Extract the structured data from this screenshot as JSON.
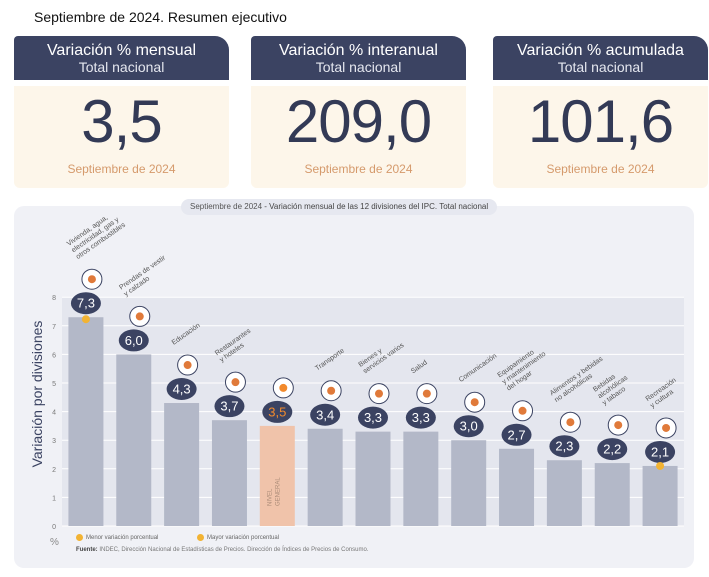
{
  "page_title": "Septiembre de 2024. Resumen ejecutivo",
  "cards": [
    {
      "title": "Variación % mensual",
      "subtitle": "Total nacional",
      "value": "3,5",
      "period": "Septiembre de 2024"
    },
    {
      "title": "Variación % interanual",
      "subtitle": "Total nacional",
      "value": "209,0",
      "period": "Septiembre de 2024"
    },
    {
      "title": "Variación % acumulada",
      "subtitle": "Total nacional",
      "value": "101,6",
      "period": "Septiembre de 2024"
    }
  ],
  "chart": {
    "title_period": "Septiembre de 2024",
    "title_rest": " - Variación mensual de las 12 divisiones del IPC. Total nacional",
    "ylabel": "Variación por divisiones",
    "unit": "%",
    "legend_min": "Menor variación porcentual",
    "legend_max": "Mayor variación porcentual",
    "source_label": "Fuente:",
    "source_text": " INDEC, Dirección Nacional de Estadísticas de Precios. Dirección de Índices de Precios de Consumo."
  },
  "chart_data": {
    "type": "bar",
    "categories": [
      "Vivienda, agua, electricidad, gas y otros combustibles",
      "Prendas de vestir y calzado",
      "Educación",
      "Restaurantes y hoteles",
      "NIVEL GENERAL",
      "Transporte",
      "Bienes y servicios varios",
      "Salud",
      "Comunicación",
      "Equipamiento y mantenimiento del hogar",
      "Alimentos y bebidas no alcohólicas",
      "Bebidas alcohólicas y tabaco",
      "Recreación y cultura"
    ],
    "category_lines": [
      [
        "Vivienda, agua,",
        "electricidad, gas y",
        "otros combustibles"
      ],
      [
        "Prendas de vestir",
        "y calzado"
      ],
      [
        "Educación"
      ],
      [
        "Restaurantes",
        "y hoteles"
      ],
      [
        "NIVEL",
        "GENERAL"
      ],
      [
        "Transporte"
      ],
      [
        "Bienes y",
        "servicios varios"
      ],
      [
        "Salud"
      ],
      [
        "Comunicación"
      ],
      [
        "Equipamiento",
        "y mantenimiento",
        "del hogar"
      ],
      [
        "Alimentos y bebidas",
        "no alcohólicas"
      ],
      [
        "Bebidas",
        "alcohólicas",
        "y tabaco"
      ],
      [
        "Recreación",
        "y cultura"
      ]
    ],
    "values": [
      7.3,
      6.0,
      4.3,
      3.7,
      3.5,
      3.4,
      3.3,
      3.3,
      3.0,
      2.7,
      2.3,
      2.2,
      2.1
    ],
    "value_labels": [
      "7,3",
      "6,0",
      "4,3",
      "3,7",
      "3,5",
      "3,4",
      "3,3",
      "3,3",
      "3,0",
      "2,7",
      "2,3",
      "2,2",
      "2,1"
    ],
    "highlight_index": 4,
    "max_marker_index": 0,
    "min_marker_index": 12,
    "icons": [
      "lightbulb-icon",
      "tshirt-icon",
      "books-icon",
      "cutlery-icon",
      "shopping-basket-icon",
      "bus-icon",
      "scissors-icon",
      "cross-icon",
      "phone-icon",
      "iron-icon",
      "chicken-icon",
      "wine-icon",
      "umbrella-icon"
    ],
    "ylim": [
      0,
      8
    ],
    "yticks": [
      0,
      1,
      2,
      3,
      4,
      5,
      6,
      7,
      8
    ],
    "grid": true,
    "colors": {
      "bar": "#b3b8c8",
      "highlight": "#f0c3aa",
      "badge": "#3b4362",
      "highlight_badge_text": "#f28a2c",
      "marker": "#f2b333",
      "grid": "#ffffff"
    }
  }
}
